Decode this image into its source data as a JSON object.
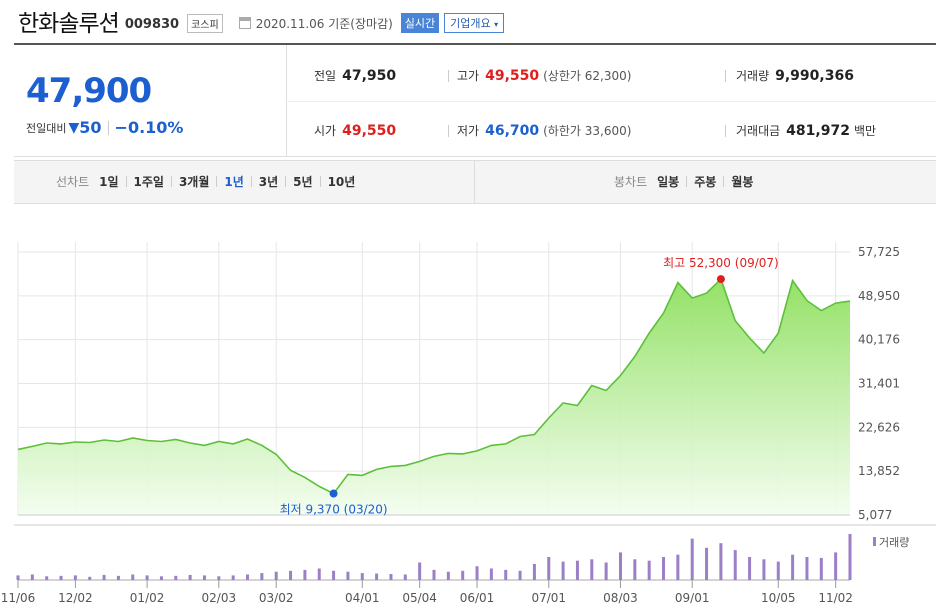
{
  "header": {
    "name": "한화솔루션",
    "code": "009830",
    "market": "코스피",
    "date": "2020.11.06 기준(장마감)",
    "realtime": "실시간",
    "company_overview": "기업개요",
    "company_overview_icon": "chevron-down-icon"
  },
  "quote": {
    "price": "47,900",
    "change_label": "전일대비",
    "change_arrow": "▼",
    "change": "50",
    "change_pct": "−0.10%",
    "prev_label": "전일",
    "prev": "47,950",
    "high_label": "고가",
    "high": "49,550",
    "upper_limit": "(상한가 62,300)",
    "volume_label": "거래량",
    "volume": "9,990,366",
    "open_label": "시가",
    "open": "49,550",
    "low_label": "저가",
    "low": "46,700",
    "lower_limit": "(하한가 33,600)",
    "amount_label": "거래대금",
    "amount": "481,972",
    "amount_unit": "백만"
  },
  "colors": {
    "up": "#e01e1e",
    "down": "#1b5fd1",
    "area": "#7ed957",
    "volume": "#9b7fc7"
  },
  "tabs": {
    "line_label": "선차트",
    "line_items": [
      "1일",
      "1주일",
      "3개월",
      "1년",
      "3년",
      "5년",
      "10년"
    ],
    "line_active": "1년",
    "candle_label": "봉차트",
    "candle_items": [
      "일봉",
      "주봉",
      "월봉"
    ]
  },
  "chart_data": {
    "type": "area",
    "x": [
      "11/06",
      "11/13",
      "11/20",
      "11/27",
      "12/02",
      "12/09",
      "12/16",
      "12/23",
      "12/30",
      "01/02",
      "01/09",
      "01/16",
      "01/23",
      "01/30",
      "02/03",
      "02/10",
      "02/17",
      "02/24",
      "03/02",
      "03/09",
      "03/13",
      "03/17",
      "03/20",
      "03/27",
      "04/01",
      "04/08",
      "04/15",
      "04/22",
      "05/04",
      "05/11",
      "05/18",
      "05/25",
      "06/01",
      "06/08",
      "06/15",
      "06/22",
      "06/29",
      "07/01",
      "07/08",
      "07/15",
      "07/22",
      "07/29",
      "08/03",
      "08/10",
      "08/17",
      "08/24",
      "08/31",
      "09/01",
      "09/04",
      "09/07",
      "09/14",
      "09/21",
      "09/28",
      "10/05",
      "10/12",
      "10/19",
      "10/26",
      "11/02",
      "11/06"
    ],
    "y": [
      18200,
      18800,
      19500,
      19300,
      19700,
      19600,
      20100,
      19800,
      20500,
      20000,
      19800,
      20200,
      19500,
      19000,
      19800,
      19300,
      20300,
      19000,
      17200,
      14000,
      12600,
      10800,
      9370,
      13200,
      13000,
      14200,
      14800,
      15000,
      15800,
      16800,
      17400,
      17300,
      17900,
      19000,
      19300,
      20800,
      21200,
      24500,
      27500,
      27000,
      31000,
      30000,
      33000,
      36800,
      41500,
      45500,
      51600,
      48500,
      49500,
      52300,
      44000,
      40500,
      37500,
      41500,
      52000,
      48000,
      46000,
      47500,
      47900
    ],
    "y_ticks": [
      "57,725",
      "48,950",
      "40,176",
      "31,401",
      "22,626",
      "13,852",
      "5,077"
    ],
    "ylim": [
      5077,
      57725
    ],
    "x_ticks": [
      "11/06",
      "12/02",
      "01/02",
      "02/03",
      "03/02",
      "04/01",
      "05/04",
      "06/01",
      "07/01",
      "08/03",
      "09/01",
      "10/05",
      "11/02"
    ],
    "max_label": "최고 52,300 (09/07)",
    "max_x": "09/07",
    "max_y": 52300,
    "min_label": "최저 9,370 (03/20)",
    "min_x": "03/20",
    "min_y": 9370,
    "volume_label": "거래량",
    "volume_relative": [
      0.1,
      0.12,
      0.08,
      0.09,
      0.1,
      0.07,
      0.11,
      0.09,
      0.12,
      0.1,
      0.08,
      0.09,
      0.11,
      0.1,
      0.08,
      0.1,
      0.12,
      0.15,
      0.18,
      0.2,
      0.22,
      0.25,
      0.2,
      0.18,
      0.15,
      0.14,
      0.13,
      0.12,
      0.38,
      0.22,
      0.18,
      0.2,
      0.3,
      0.25,
      0.22,
      0.2,
      0.35,
      0.5,
      0.4,
      0.42,
      0.45,
      0.38,
      0.6,
      0.45,
      0.42,
      0.5,
      0.55,
      0.9,
      0.7,
      0.8,
      0.65,
      0.5,
      0.45,
      0.4,
      0.55,
      0.5,
      0.48,
      0.6,
      1.0
    ]
  }
}
